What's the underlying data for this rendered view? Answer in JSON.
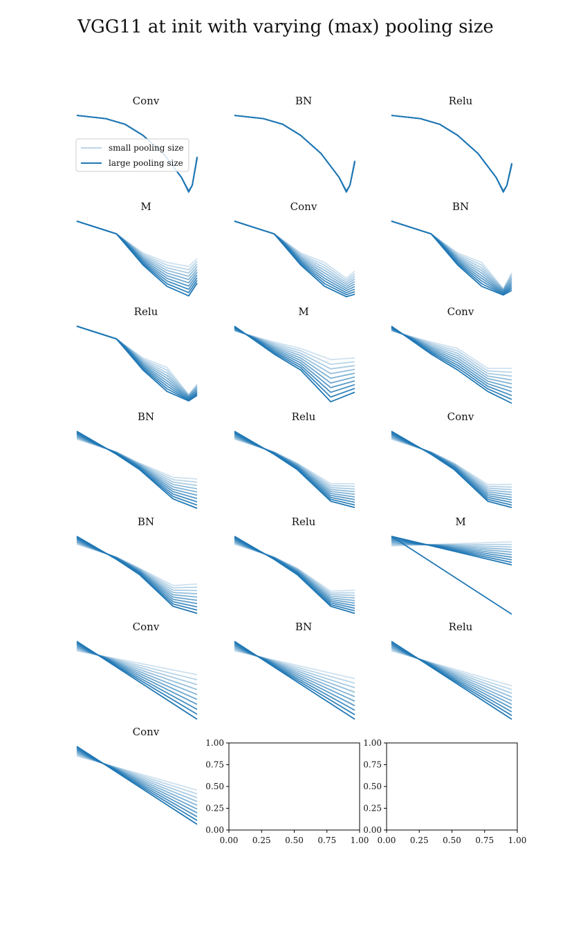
{
  "figure": {
    "title": "VGG11 at init with varying (max) pooling size"
  },
  "legend": {
    "small_label": "small pooling size",
    "large_label": "large pooling size"
  },
  "colors": {
    "line": "#1f77b4",
    "axes": "#000000",
    "text": "#111111"
  },
  "chart_data": {
    "type": "line",
    "title": "VGG11 at init with varying (max) pooling size",
    "legend_position": "upper left of first panel",
    "axes_visible_on_curve_panels": false,
    "n_series_per_panel": 10,
    "series_shade_order": "light = small pooling size, dark = large pooling size",
    "panels": [
      {
        "title": "Conv",
        "type": "line",
        "shape": "u",
        "bottom": 0.97,
        "end": 0.55,
        "spread": 0.02,
        "min_x": 0.93,
        "legend": true
      },
      {
        "title": "BN",
        "type": "line",
        "shape": "u",
        "bottom": 0.97,
        "end": 0.6,
        "spread": 0.02,
        "min_x": 0.93
      },
      {
        "title": "Relu",
        "type": "line",
        "shape": "u",
        "bottom": 0.97,
        "end": 0.63,
        "spread": 0.02,
        "min_x": 0.93
      },
      {
        "title": "M",
        "type": "line",
        "shape": "v",
        "bottom_lo": 0.57,
        "bottom_hi": 0.94,
        "end_lo": 0.47,
        "end_hi": 0.78
      },
      {
        "title": "Conv",
        "type": "line",
        "shape": "v",
        "bottom_lo": 0.72,
        "bottom_hi": 0.95,
        "end_lo": 0.63,
        "end_hi": 0.92
      },
      {
        "title": "BN",
        "type": "line",
        "shape": "v",
        "bottom_lo": 0.85,
        "bottom_hi": 0.93,
        "end_lo": 0.65,
        "end_hi": 0.87
      },
      {
        "title": "Relu",
        "type": "line",
        "shape": "v",
        "bottom_lo": 0.86,
        "bottom_hi": 0.94,
        "end_lo": 0.73,
        "end_hi": 0.87
      },
      {
        "title": "M",
        "type": "line",
        "shape": "fan",
        "mid_lo": 0.42,
        "mid_hi": 0.95,
        "end_lo": 0.4,
        "end_hi": 0.83
      },
      {
        "title": "Conv",
        "type": "line",
        "shape": "fan",
        "mid_lo": 0.53,
        "mid_hi": 0.82,
        "end_lo": 0.53,
        "end_hi": 0.97
      },
      {
        "title": "BN",
        "type": "line",
        "shape": "flat",
        "mid_lo": 0.58,
        "mid_hi": 0.85,
        "end_lo": 0.6,
        "end_hi": 0.97
      },
      {
        "title": "Relu",
        "type": "line",
        "shape": "flat",
        "mid_lo": 0.66,
        "mid_hi": 0.88,
        "end_lo": 0.66,
        "end_hi": 0.96
      },
      {
        "title": "Conv",
        "type": "line",
        "shape": "flat",
        "mid_lo": 0.67,
        "mid_hi": 0.88,
        "end_lo": 0.67,
        "end_hi": 0.96
      },
      {
        "title": "BN",
        "type": "line",
        "shape": "flat",
        "mid_lo": 0.62,
        "mid_hi": 0.88,
        "end_lo": 0.6,
        "end_hi": 0.97
      },
      {
        "title": "Relu",
        "type": "line",
        "shape": "flat",
        "mid_lo": 0.69,
        "mid_hi": 0.88,
        "end_lo": 0.68,
        "end_hi": 0.97
      },
      {
        "title": "M",
        "type": "line",
        "shape": "ray",
        "end_lo": 0.07,
        "end_hi": 0.36,
        "outlier_end": 0.98
      },
      {
        "title": "Conv",
        "type": "line",
        "shape": "ray",
        "end_lo": 0.42,
        "end_hi": 0.98
      },
      {
        "title": "BN",
        "type": "line",
        "shape": "ray",
        "end_lo": 0.47,
        "end_hi": 0.98
      },
      {
        "title": "Relu",
        "type": "line",
        "shape": "ray",
        "end_lo": 0.56,
        "end_hi": 0.98
      },
      {
        "title": "Conv",
        "type": "line",
        "shape": "ray",
        "end_lo": 0.55,
        "end_hi": 0.98
      },
      {
        "title": "",
        "type": "empty",
        "xlim": [
          0,
          1
        ],
        "ylim": [
          0,
          1
        ],
        "xticks": [
          "0.00",
          "0.25",
          "0.50",
          "0.75",
          "1.00"
        ],
        "yticks": [
          "0.00",
          "0.25",
          "0.50",
          "0.75",
          "1.00"
        ]
      },
      {
        "title": "",
        "type": "empty",
        "xlim": [
          0,
          1
        ],
        "ylim": [
          0,
          1
        ],
        "xticks": [
          "0.00",
          "0.25",
          "0.50",
          "0.75",
          "1.00"
        ],
        "yticks": [
          "0.00",
          "0.25",
          "0.50",
          "0.75",
          "1.00"
        ]
      }
    ]
  }
}
